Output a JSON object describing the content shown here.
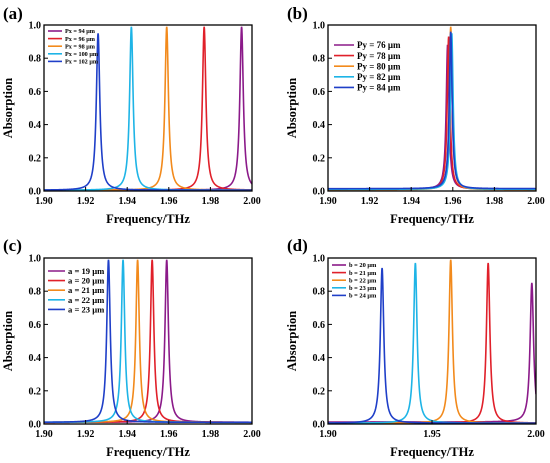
{
  "chart_data": [
    {
      "panel": "(a)",
      "type": "line",
      "xlabel": "Frequency/THz",
      "ylabel": "Absorption",
      "xlim": [
        1.9,
        2.0
      ],
      "ylim": [
        0,
        1.0
      ],
      "xticks": [
        "1.90",
        "1.92",
        "1.94",
        "1.96",
        "1.98",
        "2.00"
      ],
      "yticks": [
        "0.0",
        "0.2",
        "0.4",
        "0.6",
        "0.8",
        "1.0"
      ],
      "legend": "top-left",
      "series": [
        {
          "name": "Px = 94 μm",
          "color": "#8b1a89",
          "peak_x": 1.995,
          "peak_y": 0.99,
          "width": 0.001,
          "base": 0.005
        },
        {
          "name": "Px = 96 μm",
          "color": "#e0202a",
          "peak_x": 1.977,
          "peak_y": 0.99,
          "width": 0.001,
          "base": 0.005
        },
        {
          "name": "Px = 98 μm",
          "color": "#f28a1c",
          "peak_x": 1.959,
          "peak_y": 0.99,
          "width": 0.001,
          "base": 0.005
        },
        {
          "name": "Px = 100 μm",
          "color": "#1eb4e6",
          "peak_x": 1.942,
          "peak_y": 0.99,
          "width": 0.001,
          "base": 0.005
        },
        {
          "name": "Px = 102 μm",
          "color": "#1f3fc8",
          "peak_x": 1.926,
          "peak_y": 0.95,
          "width": 0.001,
          "base": 0.005
        }
      ]
    },
    {
      "panel": "(b)",
      "type": "line",
      "xlabel": "Frequency/THz",
      "ylabel": "Absorption",
      "xlim": [
        1.9,
        2.0
      ],
      "ylim": [
        0,
        1.0
      ],
      "xticks": [
        "1.90",
        "1.92",
        "1.94",
        "1.96",
        "1.98",
        "2.00"
      ],
      "yticks": [
        "0.0",
        "0.2",
        "0.4",
        "0.6",
        "0.8",
        "1.0"
      ],
      "legend": "top-left",
      "series": [
        {
          "name": "Py = 76 μm",
          "color": "#8b1a89",
          "peak_x": 1.9575,
          "peak_y": 0.88,
          "width": 0.0008,
          "base": 0.012
        },
        {
          "name": "Py = 78 μm",
          "color": "#e0202a",
          "peak_x": 1.958,
          "peak_y": 0.93,
          "width": 0.0008,
          "base": 0.01
        },
        {
          "name": "Py = 80 μm",
          "color": "#f28a1c",
          "peak_x": 1.959,
          "peak_y": 0.99,
          "width": 0.0008,
          "base": 0.008
        },
        {
          "name": "Py = 82 μm",
          "color": "#1eb4e6",
          "peak_x": 1.9595,
          "peak_y": 0.95,
          "width": 0.0008,
          "base": 0.01
        },
        {
          "name": "Py = 84 μm",
          "color": "#1f3fc8",
          "peak_x": 1.959,
          "peak_y": 0.96,
          "width": 0.0008,
          "base": 0.014
        }
      ]
    },
    {
      "panel": "(c)",
      "type": "line",
      "xlabel": "Frequency/THz",
      "ylabel": "Absorption",
      "xlim": [
        1.9,
        2.0
      ],
      "ylim": [
        0,
        1.0
      ],
      "xticks": [
        "1.90",
        "1.92",
        "1.94",
        "1.96",
        "1.98",
        "2.00"
      ],
      "yticks": [
        "0.0",
        "0.2",
        "0.4",
        "0.6",
        "0.8",
        "1.0"
      ],
      "legend": "top-left",
      "series": [
        {
          "name": "a = 19 μm",
          "color": "#8b1a89",
          "peak_x": 1.959,
          "peak_y": 0.99,
          "width": 0.001,
          "base": 0.01
        },
        {
          "name": "a = 20 μm",
          "color": "#e0202a",
          "peak_x": 1.952,
          "peak_y": 0.99,
          "width": 0.001,
          "base": 0.01
        },
        {
          "name": "a = 21 μm",
          "color": "#f28a1c",
          "peak_x": 1.945,
          "peak_y": 0.99,
          "width": 0.001,
          "base": 0.01
        },
        {
          "name": "a = 22 μm",
          "color": "#1eb4e6",
          "peak_x": 1.938,
          "peak_y": 0.99,
          "width": 0.001,
          "base": 0.01
        },
        {
          "name": "a = 23 μm",
          "color": "#1f3fc8",
          "peak_x": 1.931,
          "peak_y": 0.99,
          "width": 0.001,
          "base": 0.01
        }
      ]
    },
    {
      "panel": "(d)",
      "type": "line",
      "xlabel": "Frequency/THz",
      "ylabel": "Absorption",
      "xlim": [
        1.9,
        2.0
      ],
      "ylim": [
        0,
        1.0
      ],
      "xticks": [
        "1.90",
        "1.95",
        "2.00"
      ],
      "yticks": [
        "0.0",
        "0.2",
        "0.4",
        "0.6",
        "0.8",
        "1.0"
      ],
      "legend": "top-left",
      "series": [
        {
          "name": "b = 20 μm",
          "color": "#8b1a89",
          "peak_x": 1.998,
          "peak_y": 0.85,
          "width": 0.001,
          "base": 0.012
        },
        {
          "name": "b = 21 μm",
          "color": "#e0202a",
          "peak_x": 1.977,
          "peak_y": 0.97,
          "width": 0.001,
          "base": 0.005
        },
        {
          "name": "b = 22 μm",
          "color": "#f28a1c",
          "peak_x": 1.959,
          "peak_y": 0.99,
          "width": 0.001,
          "base": 0.005
        },
        {
          "name": "b = 23 μm",
          "color": "#1eb4e6",
          "peak_x": 1.942,
          "peak_y": 0.97,
          "width": 0.001,
          "base": 0.005
        },
        {
          "name": "b = 24 μm",
          "color": "#1f3fc8",
          "peak_x": 1.926,
          "peak_y": 0.94,
          "width": 0.001,
          "base": 0.005
        }
      ]
    }
  ]
}
